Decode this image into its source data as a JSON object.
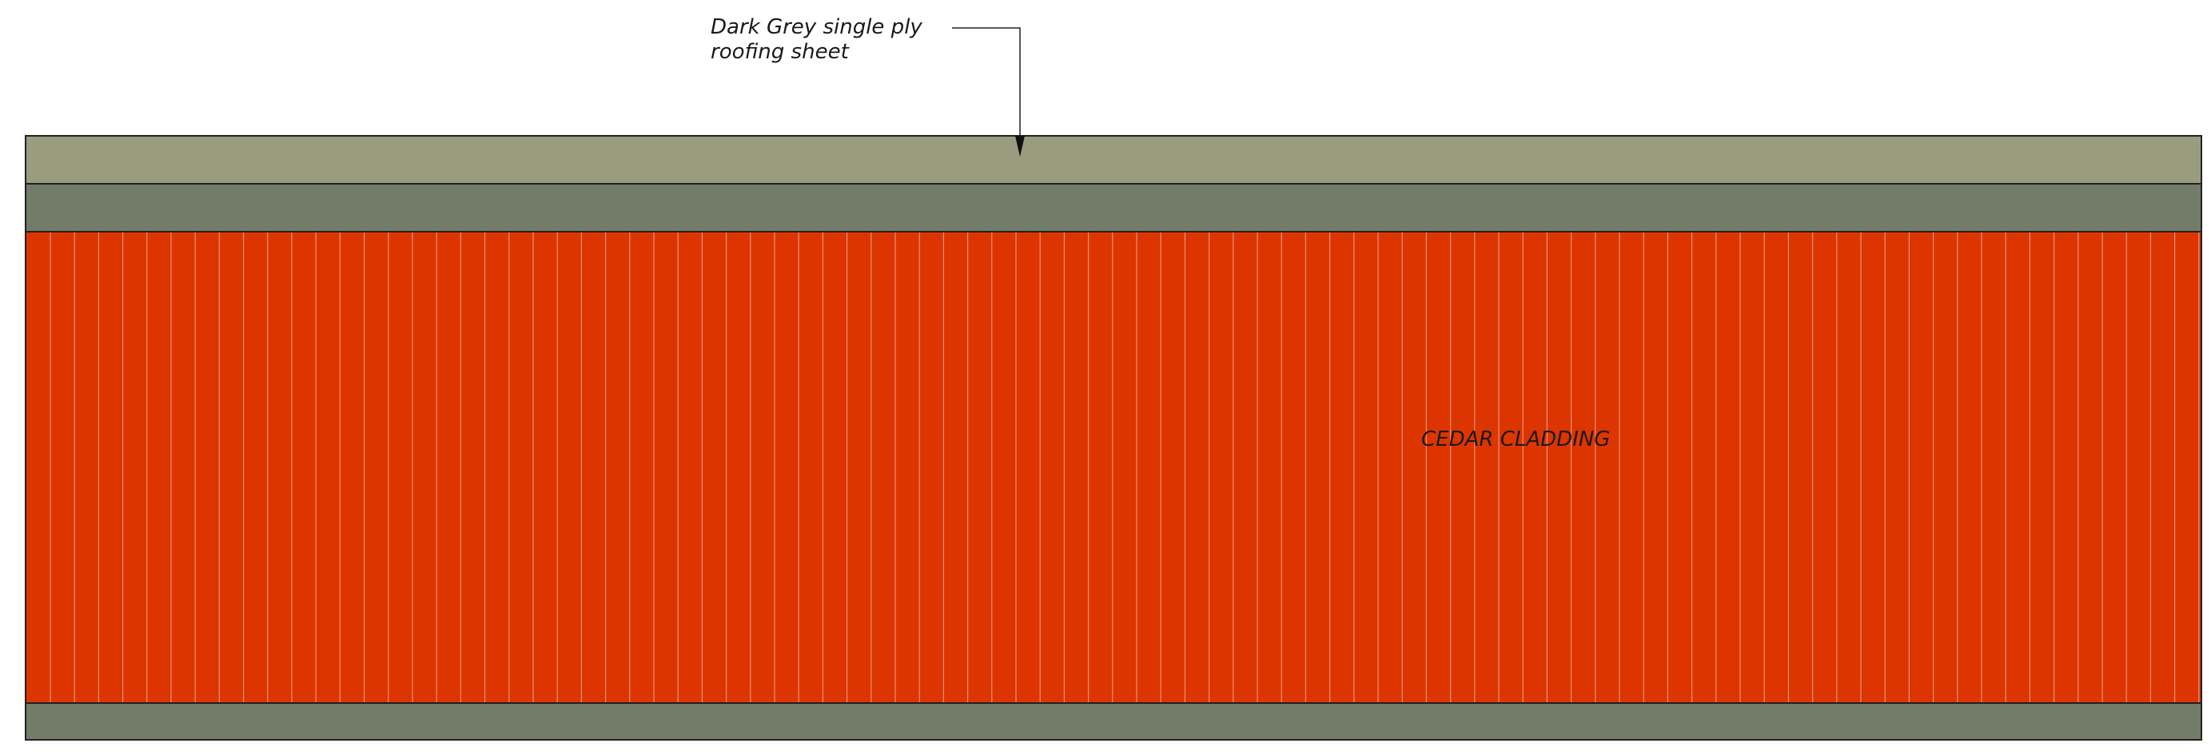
{
  "roof_note": {
    "lines": [
      "Dark Grey single ply",
      "roofing sheet"
    ]
  },
  "cladding_label": "CEDAR CLADDING"
}
